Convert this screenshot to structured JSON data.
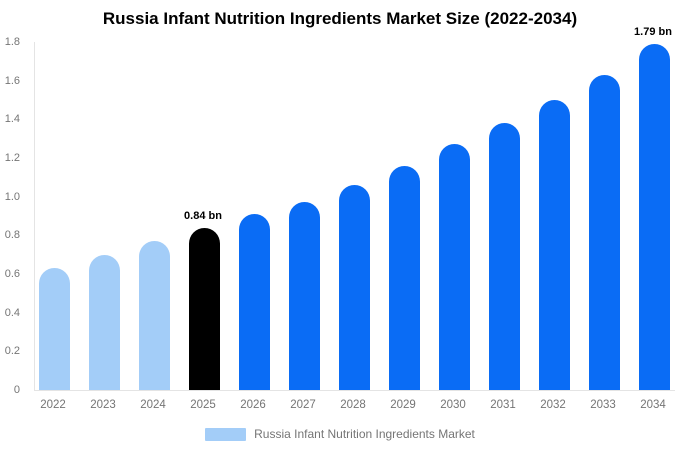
{
  "chart_data": {
    "type": "bar",
    "title": "Russia Infant Nutrition Ingredients Market Size (2022-2034)",
    "unit": "bn",
    "categories": [
      "2022",
      "2023",
      "2024",
      "2025",
      "2026",
      "2027",
      "2028",
      "2029",
      "2030",
      "2031",
      "2032",
      "2033",
      "2034"
    ],
    "values": [
      0.63,
      0.7,
      0.77,
      0.84,
      0.91,
      0.97,
      1.06,
      1.16,
      1.27,
      1.38,
      1.5,
      1.63,
      1.79
    ],
    "bar_roles": [
      "historical",
      "historical",
      "historical",
      "highlight",
      "forecast",
      "forecast",
      "forecast",
      "forecast",
      "forecast",
      "forecast",
      "forecast",
      "forecast",
      "forecast"
    ],
    "colors": {
      "historical": "#a3cdf8",
      "highlight": "#000000",
      "forecast": "#0a6cf5"
    },
    "annotations": [
      {
        "category": "2025",
        "text": "0.84 bn"
      },
      {
        "category": "2034",
        "text": "1.79 bn"
      }
    ],
    "ylim": [
      0,
      1.8
    ],
    "ytick_labels": [
      "0",
      "0.2",
      "0.4",
      "0.6",
      "0.8",
      "1.0",
      "1.2",
      "1.4",
      "1.6",
      "1.8"
    ],
    "grid": false,
    "legend_position": "bottom",
    "axis_color": "#e4e4e4",
    "text_color": "#757575"
  },
  "legend": {
    "label": "Russia Infant Nutrition Ingredients Market",
    "swatch_color": "#a3cdf8"
  }
}
